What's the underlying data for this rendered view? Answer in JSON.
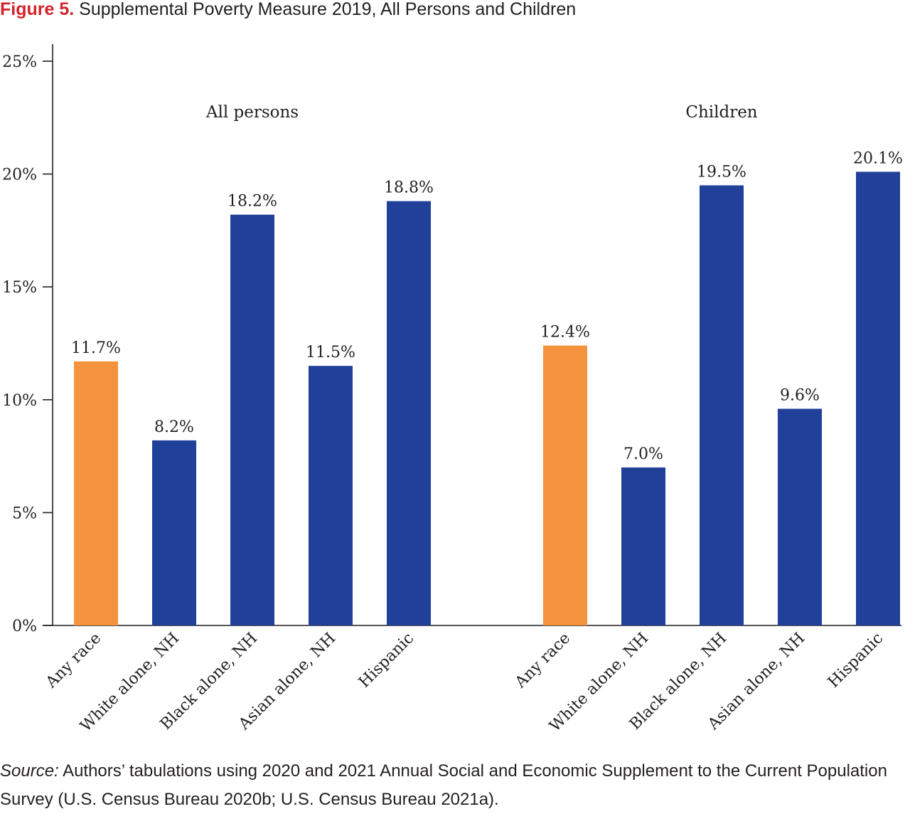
{
  "figure": {
    "label": "Figure 5.",
    "title": "Supplemental Poverty Measure 2019, All Persons and Children"
  },
  "chart_data": {
    "type": "bar",
    "title": "Supplemental Poverty Measure 2019, All Persons and Children",
    "xlabel": "",
    "ylabel": "",
    "ylim": [
      0,
      25
    ],
    "yticks": [
      "0%",
      "5%",
      "10%",
      "15%",
      "20%",
      "25%"
    ],
    "grid": false,
    "legend": "none",
    "groups": [
      {
        "name": "All persons",
        "categories": [
          "Any race",
          "White alone, NH",
          "Black alone, NH",
          "Asian alone, NH",
          "Hispanic"
        ],
        "values": [
          11.7,
          8.2,
          18.2,
          11.5,
          18.8
        ],
        "labels": [
          "11.7%",
          "8.2%",
          "18.2%",
          "11.5%",
          "18.8%"
        ]
      },
      {
        "name": "Children",
        "categories": [
          "Any race",
          "White alone, NH",
          "Black alone, NH",
          "Asian alone, NH",
          "Hispanic"
        ],
        "values": [
          12.4,
          7.0,
          19.5,
          9.6,
          20.1
        ],
        "labels": [
          "12.4%",
          "7.0%",
          "19.5%",
          "9.6%",
          "20.1%"
        ]
      }
    ],
    "colors": {
      "any_race": "#f5923e",
      "subgroup": "#21409a",
      "axis": "#231f20"
    }
  },
  "source": {
    "label": "Source:",
    "text": "Authors’ tabulations using 2020 and 2021 Annual Social and Economic Supplement to the Current Population Survey (U.S. Census Bureau 2020b; U.S. Census Bureau 2021a)."
  }
}
